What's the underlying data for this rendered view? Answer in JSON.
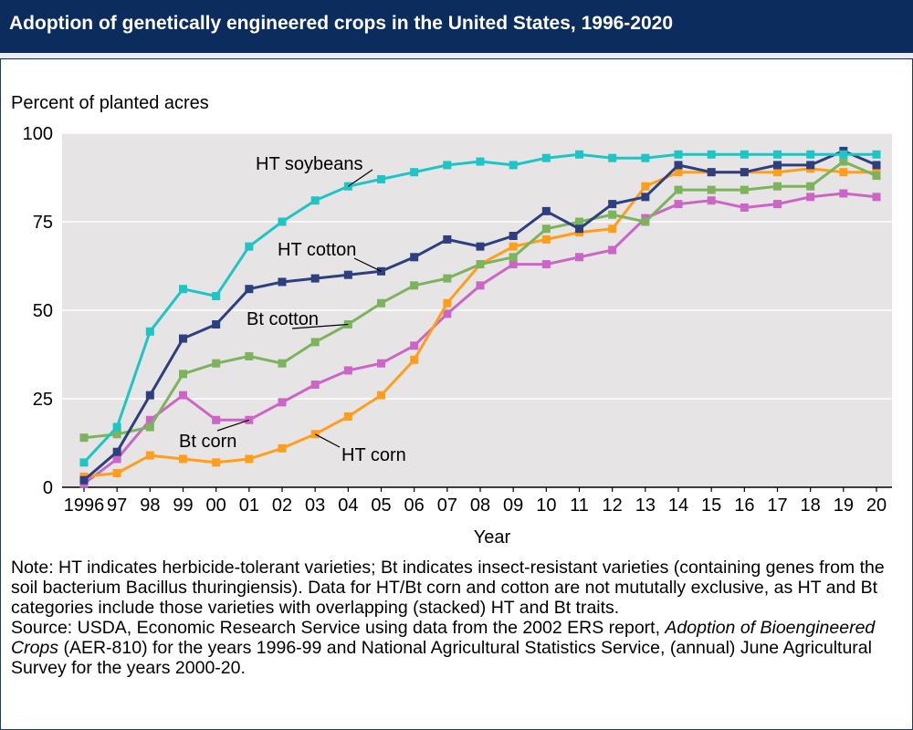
{
  "header": {
    "title": "Adoption of genetically engineered crops in the United States, 1996-2020"
  },
  "chart_data": {
    "type": "line",
    "title": "Adoption of genetically engineered crops in the United States, 1996-2020",
    "ylabel": "Percent of planted acres",
    "xlabel": "Year",
    "ylim": [
      0,
      100
    ],
    "yticks": [
      0,
      25,
      50,
      75,
      100
    ],
    "grid": "horizontal",
    "background": "#e6e4e5",
    "x": [
      1996,
      1997,
      1998,
      1999,
      2000,
      2001,
      2002,
      2003,
      2004,
      2005,
      2006,
      2007,
      2008,
      2009,
      2010,
      2011,
      2012,
      2013,
      2014,
      2015,
      2016,
      2017,
      2018,
      2019,
      2020
    ],
    "tick_labels": [
      "1996",
      "97",
      "98",
      "99",
      "00",
      "01",
      "02",
      "03",
      "04",
      "05",
      "06",
      "07",
      "08",
      "09",
      "10",
      "11",
      "12",
      "13",
      "14",
      "15",
      "16",
      "17",
      "18",
      "19",
      "20"
    ],
    "series": [
      {
        "name": "Bt corn",
        "color": "#cc66c6",
        "values": [
          1,
          8,
          19,
          26,
          19,
          19,
          24,
          29,
          33,
          35,
          40,
          49,
          57,
          63,
          63,
          65,
          67,
          76,
          80,
          81,
          79,
          80,
          82,
          83,
          82
        ]
      },
      {
        "name": "HT corn",
        "color": "#ff9e1b",
        "values": [
          3,
          4,
          9,
          8,
          7,
          8,
          11,
          15,
          20,
          26,
          36,
          52,
          63,
          68,
          70,
          72,
          73,
          85,
          89,
          89,
          89,
          89,
          90,
          89,
          89
        ]
      },
      {
        "name": "Bt cotton",
        "color": "#7cb35c",
        "values": [
          14,
          15,
          17,
          32,
          35,
          37,
          35,
          41,
          46,
          52,
          57,
          59,
          63,
          65,
          73,
          75,
          77,
          75,
          84,
          84,
          84,
          85,
          85,
          92,
          88
        ]
      },
      {
        "name": "HT cotton",
        "color": "#2e3f7f",
        "values": [
          2,
          10,
          26,
          42,
          46,
          56,
          58,
          59,
          60,
          61,
          65,
          70,
          68,
          71,
          78,
          73,
          80,
          82,
          91,
          89,
          89,
          91,
          91,
          95,
          91
        ]
      },
      {
        "name": "HT soybeans",
        "color": "#1fc4c4",
        "values": [
          7,
          17,
          44,
          56,
          54,
          68,
          75,
          81,
          85,
          87,
          89,
          91,
          92,
          91,
          93,
          94,
          93,
          93,
          94,
          94,
          94,
          94,
          94,
          94,
          94
        ]
      }
    ]
  },
  "notes": {
    "note": "Note: HT indicates herbicide-tolerant varieties; Bt indicates insect-resistant varieties (containing genes from the soil bacterium Bacillus thuringiensis). Data for HT/Bt corn and cotton are not mututally exclusive, as HT and Bt categories include those varieties with overlapping (stacked) HT and Bt traits.",
    "source_prefix": "Source: USDA, Economic Research Service using data from the 2002 ERS report,",
    "source_italic": "Adoption of Bioengineered Crops",
    "source_suffix": "(AER-810) for the years 1996-99 and National Agricultural Statistics Service, (annual) June Agricultural Survey for the years 2000-20."
  },
  "colors": {
    "header_bg": "#0b2c5c",
    "plot_bg": "#e6e4e5",
    "gridline": "#ffffff"
  }
}
